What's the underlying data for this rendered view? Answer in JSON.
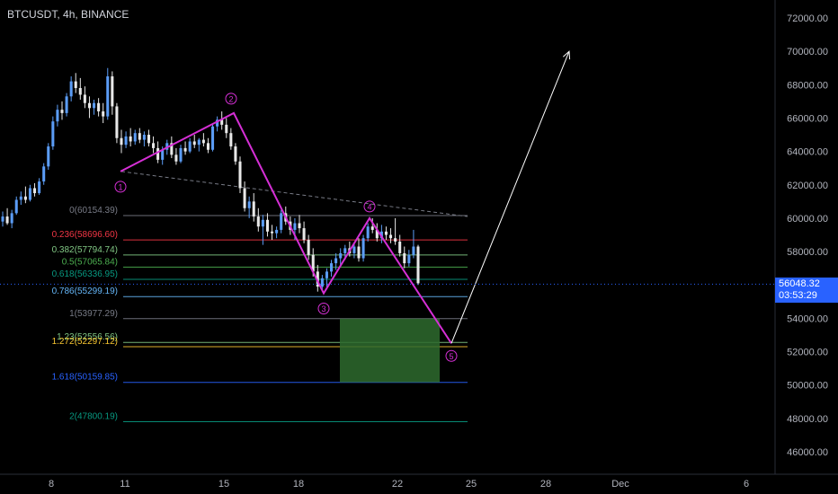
{
  "chart_data": {
    "type": "candlestick",
    "symbol": "BTCUSDT",
    "timeframe": "4h",
    "exchange": "BINANCE",
    "ylim": [
      44900,
      72900
    ],
    "price_axis": {
      "ticks": [
        "72000.00",
        "70000.00",
        "68000.00",
        "66000.00",
        "64000.00",
        "62000.00",
        "60000.00",
        "58000.00",
        "56000.00",
        "54000.00",
        "52000.00",
        "50000.00",
        "48000.00",
        "46000.00"
      ]
    },
    "time_axis": {
      "ticks": [
        "8",
        "11",
        "15",
        "18",
        "22",
        "25",
        "28",
        "Dec",
        "6"
      ]
    },
    "last_price": {
      "value": "56048.32",
      "countdown": "03:53:29",
      "color": "#2962ff"
    },
    "candles": [
      [
        59800,
        60400,
        59500,
        60100
      ],
      [
        60100,
        60600,
        59600,
        59700
      ],
      [
        59700,
        60500,
        59400,
        60300
      ],
      [
        60300,
        61300,
        60200,
        61100
      ],
      [
        61100,
        61600,
        60800,
        61300
      ],
      [
        61300,
        61900,
        60900,
        61100
      ],
      [
        61100,
        62000,
        61000,
        61800
      ],
      [
        61800,
        62100,
        61300,
        61500
      ],
      [
        61500,
        62400,
        61400,
        62200
      ],
      [
        62200,
        63300,
        62000,
        63100
      ],
      [
        63100,
        64500,
        62900,
        64300
      ],
      [
        64300,
        66100,
        64100,
        65800
      ],
      [
        65800,
        66800,
        65500,
        66500
      ],
      [
        66500,
        67000,
        65900,
        66300
      ],
      [
        66300,
        67500,
        66100,
        67300
      ],
      [
        67300,
        68500,
        67000,
        68200
      ],
      [
        68200,
        68700,
        67500,
        67800
      ],
      [
        67800,
        68400,
        67100,
        67400
      ],
      [
        67400,
        67900,
        66600,
        66900
      ],
      [
        66900,
        67300,
        66000,
        66600
      ],
      [
        66600,
        67100,
        66200,
        66900
      ],
      [
        66900,
        67200,
        66100,
        66400
      ],
      [
        66400,
        66900,
        65700,
        66100
      ],
      [
        66100,
        69000,
        65900,
        68500
      ],
      [
        68500,
        68800,
        66200,
        66700
      ],
      [
        66700,
        66900,
        64500,
        64800
      ],
      [
        64800,
        65300,
        63900,
        64400
      ],
      [
        64400,
        65200,
        64200,
        64900
      ],
      [
        64900,
        65400,
        64300,
        64600
      ],
      [
        64600,
        65300,
        64400,
        65100
      ],
      [
        65100,
        65400,
        64500,
        64700
      ],
      [
        64700,
        65200,
        64300,
        65000
      ],
      [
        65000,
        65300,
        64300,
        64500
      ],
      [
        64500,
        64900,
        63900,
        64200
      ],
      [
        64200,
        64600,
        63300,
        63500
      ],
      [
        63500,
        64300,
        63200,
        64100
      ],
      [
        64100,
        64700,
        63800,
        64500
      ],
      [
        64500,
        64900,
        63600,
        63800
      ],
      [
        63800,
        64200,
        63200,
        63400
      ],
      [
        63400,
        64400,
        63300,
        64200
      ],
      [
        64200,
        64600,
        63800,
        64000
      ],
      [
        64000,
        64800,
        63900,
        64600
      ],
      [
        64600,
        65000,
        64200,
        64400
      ],
      [
        64400,
        64800,
        64000,
        64700
      ],
      [
        64700,
        65100,
        64300,
        64500
      ],
      [
        64500,
        64800,
        63900,
        64100
      ],
      [
        64100,
        65700,
        64000,
        65500
      ],
      [
        65500,
        66100,
        65200,
        65900
      ],
      [
        65900,
        66400,
        65300,
        65600
      ],
      [
        65600,
        66000,
        64800,
        65100
      ],
      [
        65100,
        65400,
        64100,
        64300
      ],
      [
        64300,
        64500,
        63200,
        63400
      ],
      [
        63400,
        63700,
        61500,
        61800
      ],
      [
        61800,
        62200,
        60400,
        60600
      ],
      [
        60600,
        61300,
        60000,
        61000
      ],
      [
        61000,
        61500,
        59800,
        60100
      ],
      [
        60100,
        60600,
        59200,
        59500
      ],
      [
        59500,
        60200,
        58400,
        59900
      ],
      [
        59900,
        60300,
        58900,
        59200
      ],
      [
        59200,
        59600,
        58700,
        59100
      ],
      [
        59100,
        59500,
        58800,
        59300
      ],
      [
        59300,
        60500,
        59100,
        60300
      ],
      [
        60300,
        60700,
        59600,
        59800
      ],
      [
        59800,
        60100,
        59000,
        59300
      ],
      [
        59300,
        60000,
        58700,
        59700
      ],
      [
        59700,
        60200,
        59100,
        59400
      ],
      [
        59400,
        59800,
        58500,
        58700
      ],
      [
        58700,
        59000,
        57500,
        57800
      ],
      [
        57800,
        58200,
        56500,
        56800
      ],
      [
        56800,
        57200,
        55600,
        55900
      ],
      [
        55900,
        56600,
        55700,
        56400
      ],
      [
        56400,
        57000,
        55800,
        56800
      ],
      [
        56800,
        57500,
        56500,
        57300
      ],
      [
        57300,
        57900,
        56900,
        57600
      ],
      [
        57600,
        58200,
        57200,
        57900
      ],
      [
        57900,
        58400,
        57500,
        58200
      ],
      [
        58200,
        58600,
        57700,
        57900
      ],
      [
        57900,
        58500,
        57600,
        58300
      ],
      [
        58300,
        58800,
        57400,
        57600
      ],
      [
        57600,
        59000,
        57400,
        58800
      ],
      [
        58800,
        59700,
        58600,
        59500
      ],
      [
        59500,
        60000,
        59100,
        59300
      ],
      [
        59300,
        59700,
        58600,
        58800
      ],
      [
        58800,
        59600,
        58500,
        59200
      ],
      [
        59200,
        59500,
        58700,
        59000
      ],
      [
        59000,
        59400,
        58500,
        58800
      ],
      [
        58800,
        60000,
        58400,
        58600
      ],
      [
        58600,
        59000,
        57700,
        57900
      ],
      [
        57900,
        58300,
        57000,
        57300
      ],
      [
        57300,
        58100,
        57100,
        57800
      ],
      [
        57800,
        59300,
        57600,
        58300
      ],
      [
        58300,
        58400,
        56000,
        56100
      ]
    ],
    "wave": [
      {
        "label": "1",
        "price": 62800
      },
      {
        "label": "2",
        "price": 66300
      },
      {
        "label": "3",
        "price": 55500
      },
      {
        "label": "4",
        "price": 60000
      },
      {
        "label": "5",
        "price": 52500
      }
    ],
    "fib_levels": [
      {
        "label": "0(60154.39)",
        "price": 60154.39,
        "color": "#787b86"
      },
      {
        "label": "0.236(58696.60)",
        "price": 58696.6,
        "color": "#f23645"
      },
      {
        "label": "0.382(57794.74)",
        "price": 57794.74,
        "color": "#81c784"
      },
      {
        "label": "0.5(57065.84)",
        "price": 57065.84,
        "color": "#4caf50"
      },
      {
        "label": "0.618(56336.95)",
        "price": 56336.95,
        "color": "#089981"
      },
      {
        "label": "0.786(55299.19)",
        "price": 55299.19,
        "color": "#64b5f6"
      },
      {
        "label": "1(53977.29)",
        "price": 53977.29,
        "color": "#787b86"
      },
      {
        "label": "1.23(52556.56)",
        "price": 52556.56,
        "color": "#81c784"
      },
      {
        "label": "1.272(52297.12)",
        "price": 52297.12,
        "color": "#f7c530"
      },
      {
        "label": "1.618(50159.85)",
        "price": 50159.85,
        "color": "#2962ff"
      },
      {
        "label": "2(47800.19)",
        "price": 47800.19,
        "color": "#089981"
      }
    ],
    "target_zone": {
      "top": 53977.29,
      "bottom": 50159.85,
      "color": "#2e6b2e"
    },
    "projection_target": 70000,
    "colors": {
      "up": "#5b9cf6",
      "down": "#e8e8e8",
      "wave": "#d62fd6",
      "fib_line": "#808080"
    },
    "grid": false
  }
}
